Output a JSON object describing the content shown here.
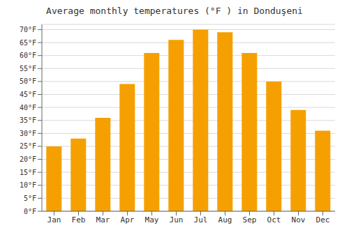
{
  "chart_data": {
    "type": "bar",
    "title": "Average monthly temperatures (°F ) in Donduşeni",
    "categories": [
      "Jan",
      "Feb",
      "Mar",
      "Apr",
      "May",
      "Jun",
      "Jul",
      "Aug",
      "Sep",
      "Oct",
      "Nov",
      "Dec"
    ],
    "values": [
      25,
      28,
      36,
      49,
      61,
      66,
      70,
      69,
      61,
      50,
      39,
      31
    ],
    "color": "#F5A000",
    "ylim": [
      0,
      72
    ],
    "yticks": [
      {
        "value": 0,
        "label": "0°F"
      },
      {
        "value": 5,
        "label": "5°F"
      },
      {
        "value": 10,
        "label": "10°F"
      },
      {
        "value": 15,
        "label": "15°F"
      },
      {
        "value": 20,
        "label": "20°F"
      },
      {
        "value": 25,
        "label": "25°F"
      },
      {
        "value": 30,
        "label": "30°F"
      },
      {
        "value": 35,
        "label": "35°F"
      },
      {
        "value": 40,
        "label": "40°F"
      },
      {
        "value": 45,
        "label": "45°F"
      },
      {
        "value": 50,
        "label": "50°F"
      },
      {
        "value": 55,
        "label": "55°F"
      },
      {
        "value": 60,
        "label": "60°F"
      },
      {
        "value": 65,
        "label": "65°F"
      },
      {
        "value": 70,
        "label": "70°F"
      }
    ],
    "grid": true
  }
}
